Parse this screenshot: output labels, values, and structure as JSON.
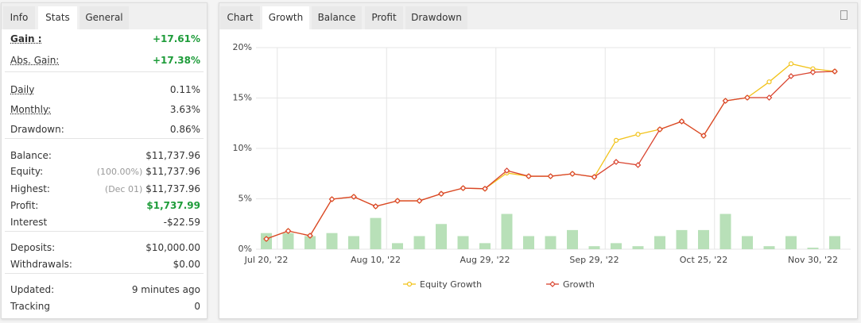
{
  "left_tabs": [
    {
      "label": "Info"
    },
    {
      "label": "Stats",
      "active": true
    },
    {
      "label": "General"
    }
  ],
  "stats": [
    [
      {
        "label": "Gain :",
        "value": "+17.61%",
        "color": "#1e9c3a",
        "bold": true,
        "underline": true
      },
      {
        "label": "Abs. Gain:",
        "value": "+17.38%",
        "color": "#1e9c3a",
        "underline": true
      }
    ],
    [
      {
        "label": "Daily",
        "value": "0.11%",
        "underline": true
      },
      {
        "label": "Monthly:",
        "value": "3.63%",
        "underline": true
      },
      {
        "label": "Drawdown:",
        "value": "0.86%"
      }
    ],
    [
      {
        "label": "Balance:",
        "value": "$11,737.96"
      },
      {
        "label": "Equity:",
        "note": "(100.00%)",
        "value": "$11,737.96"
      },
      {
        "label": "Highest:",
        "note": "(Dec 01)",
        "value": "$11,737.96"
      },
      {
        "label": "Profit:",
        "value": "$1,737.99",
        "color": "#1e9c3a"
      },
      {
        "label": "Interest",
        "value": "-$22.59"
      }
    ],
    [
      {
        "label": "Deposits:",
        "value": "$10,000.00"
      },
      {
        "label": "Withdrawals:",
        "value": "$0.00"
      }
    ],
    [
      {
        "label": "Updated:",
        "value": "9 minutes ago"
      },
      {
        "label": "Tracking",
        "value": "0"
      }
    ]
  ],
  "right_tabs": [
    {
      "label": "Chart"
    },
    {
      "label": "Growth",
      "active": true
    },
    {
      "label": "Balance"
    },
    {
      "label": "Profit"
    },
    {
      "label": "Drawdown"
    }
  ],
  "chart_data": {
    "type": "line",
    "categories": [
      "Jul 20, '22",
      null,
      null,
      null,
      null,
      "Aug 10, '22",
      null,
      null,
      null,
      null,
      "Aug 29, '22",
      null,
      null,
      null,
      null,
      "Sep 29, '22",
      null,
      null,
      null,
      null,
      "Oct 25, '22",
      null,
      null,
      null,
      null,
      "Nov 30, '22",
      null
    ],
    "ylim": [
      0,
      20
    ],
    "yticks": [
      {
        "value": 0,
        "label": "0%"
      },
      {
        "value": 5,
        "label": "5%"
      },
      {
        "value": 10,
        "label": "10%"
      },
      {
        "value": 15,
        "label": "15%"
      },
      {
        "value": 20,
        "label": "20%"
      }
    ],
    "grid": true,
    "bars": {
      "color": "#b8e0b8",
      "values": [
        1.6,
        1.6,
        1.3,
        1.6,
        1.3,
        3.1,
        0.6,
        1.3,
        2.5,
        1.3,
        0.6,
        3.5,
        1.3,
        1.3,
        1.9,
        0.3,
        0.6,
        0.3,
        1.3,
        1.9,
        1.9,
        3.5,
        1.3,
        0.3,
        1.3,
        0.15,
        1.3
      ]
    },
    "series": [
      {
        "name": "Equity Growth",
        "color": "#f2c31b",
        "marker": "circle",
        "values": [
          1.02,
          1.81,
          1.34,
          4.96,
          5.2,
          4.25,
          4.8,
          4.8,
          5.5,
          6.06,
          6.0,
          7.56,
          7.24,
          7.24,
          7.48,
          7.17,
          10.8,
          11.4,
          11.89,
          12.68,
          11.26,
          14.72,
          15.04,
          16.6,
          18.4,
          17.9,
          17.64
        ]
      },
      {
        "name": "Growth",
        "color": "#d9432e",
        "marker": "diamond",
        "values": [
          1.02,
          1.81,
          1.34,
          4.96,
          5.2,
          4.25,
          4.8,
          4.8,
          5.5,
          6.06,
          6.0,
          7.8,
          7.24,
          7.24,
          7.48,
          7.17,
          8.66,
          8.35,
          11.89,
          12.68,
          11.26,
          14.72,
          15.04,
          15.04,
          17.17,
          17.56,
          17.64
        ]
      }
    ]
  }
}
